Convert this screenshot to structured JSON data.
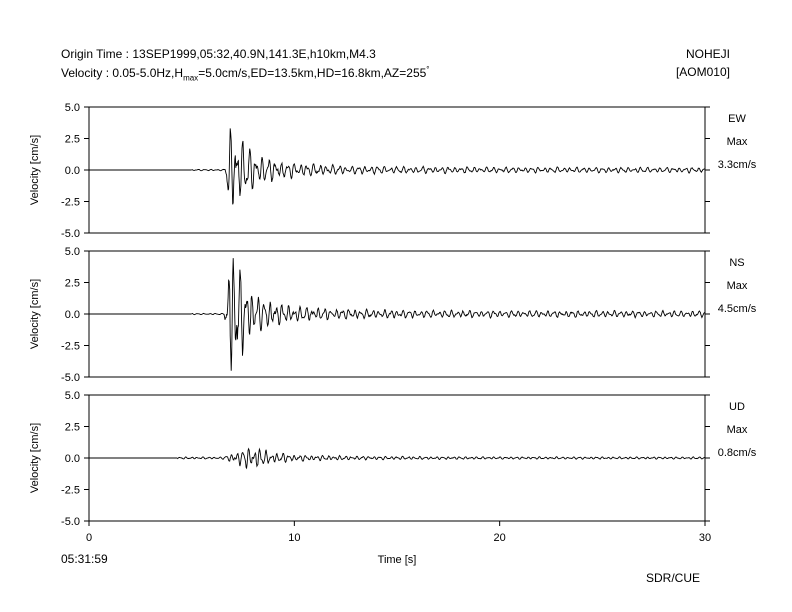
{
  "header": {
    "line1": "Origin Time : 13SEP1999,05:32,40.9N,141.3E,h10km,M4.3",
    "line2_pre": "Velocity : 0.05-5.0Hz,H",
    "line2_sub": "max",
    "line2_post": "=5.0cm/s,ED=13.5km,HD=16.8km,AZ=255",
    "line2_deg": "°",
    "station": "NOHEJI",
    "station_code": "[AOM010]"
  },
  "footer": {
    "start_time": "05:31:59",
    "credit": "SDR/CUE"
  },
  "chart_data": {
    "type": "line",
    "xlabel": "Time [s]",
    "xlim": [
      0,
      30
    ],
    "xticks": [
      0,
      10,
      20,
      30
    ],
    "xtick_labels": [
      "0",
      "10",
      "20",
      "30"
    ],
    "panels": [
      {
        "component": "EW",
        "max_label": "Max",
        "max_value": "3.3cm/s",
        "ylabel": "Velocity [cm/s]",
        "ylim": [
          -5,
          5
        ],
        "yticks": [
          5,
          2.5,
          0,
          -2.5,
          -5
        ],
        "ytick_labels": [
          "5.0",
          "2.5",
          "0.0",
          "-2.5",
          "-5.0"
        ],
        "max_abs": 3.3,
        "trace": {
          "start": 5.0,
          "onset": 6.6,
          "peak_time": 6.95,
          "pre_noise": 0.04,
          "early_amp": 2.4,
          "coda_amp": 0.55,
          "tail_amp": 0.15,
          "decay": 3.5,
          "freq": 3.2,
          "seed": 11
        }
      },
      {
        "component": "NS",
        "max_label": "Max",
        "max_value": "4.5cm/s",
        "ylabel": "Velocity [cm/s]",
        "ylim": [
          -5,
          5
        ],
        "yticks": [
          5,
          2.5,
          0,
          -2.5,
          -5
        ],
        "ytick_labels": [
          "5.0",
          "2.5",
          "0.0",
          "-2.5",
          "-5.0"
        ],
        "max_abs": 4.5,
        "trace": {
          "start": 5.0,
          "onset": 6.6,
          "peak_time": 6.9,
          "pre_noise": 0.03,
          "early_amp": 2.8,
          "coda_amp": 0.55,
          "tail_amp": 0.15,
          "decay": 3.0,
          "freq": 3.4,
          "seed": 23
        }
      },
      {
        "component": "UD",
        "max_label": "Max",
        "max_value": "0.8cm/s",
        "ylabel": "Velocity [cm/s]",
        "ylim": [
          -5,
          5
        ],
        "yticks": [
          5,
          2.5,
          0,
          -2.5,
          -5
        ],
        "ytick_labels": [
          "5.0",
          "2.5",
          "0.0",
          "-2.5",
          "-5.0"
        ],
        "max_abs": 0.8,
        "trace": {
          "start": 4.3,
          "onset": 6.5,
          "peak_time": 8.0,
          "pre_noise": 0.05,
          "early_amp": 0.4,
          "coda_amp": 0.15,
          "tail_amp": 0.05,
          "decay": 4.0,
          "freq": 3.6,
          "seed": 37
        }
      }
    ]
  }
}
